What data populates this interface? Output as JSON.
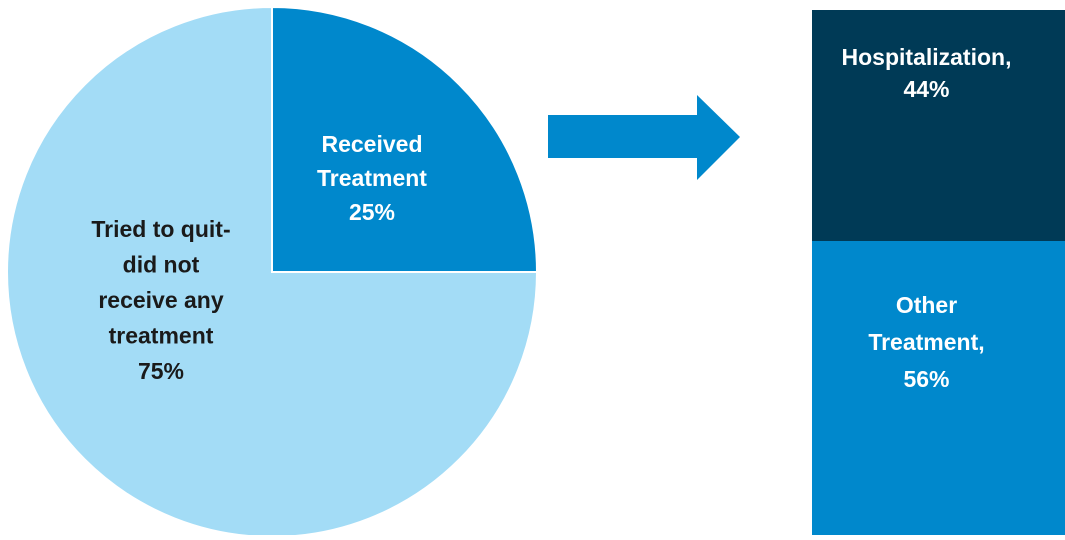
{
  "chart_data": [
    {
      "type": "pie",
      "slices": [
        {
          "label_lines": [
            "Received",
            "Treatment",
            "25%"
          ],
          "value": 25,
          "color": "#0088cc",
          "label_color": "#ffffff"
        },
        {
          "label_lines": [
            "Tried to quit-",
            "did not",
            "receive any",
            "treatment",
            "75%"
          ],
          "value": 75,
          "color": "#a3dcf6",
          "label_color": "#1a1a1a"
        }
      ]
    },
    {
      "type": "bar",
      "stacked": true,
      "segments": [
        {
          "label_lines": [
            "Hospitalization,",
            "44%"
          ],
          "value": 44,
          "color": "#003a56",
          "label_color": "#ffffff"
        },
        {
          "label_lines": [
            "Other",
            "Treatment,",
            "56%"
          ],
          "value": 56,
          "color": "#0088cc",
          "label_color": "#ffffff"
        }
      ]
    }
  ],
  "arrow": {
    "color": "#0088cc",
    "icon": "arrow-right-icon"
  }
}
